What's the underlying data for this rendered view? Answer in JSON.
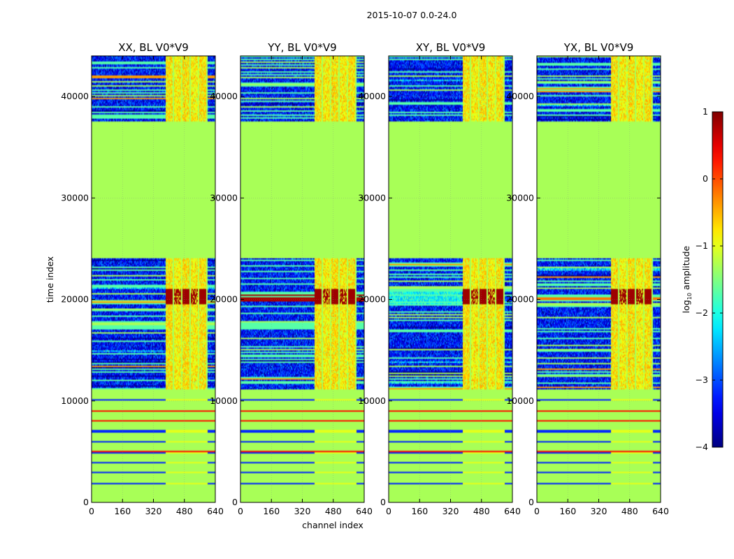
{
  "figure": {
    "suptitle": "2015-10-07 0.0-24.0"
  },
  "chart_data": {
    "type": "heatmap",
    "panels": [
      {
        "title": "XX, BL V0*V9",
        "pol": "XX"
      },
      {
        "title": "YY, BL V0*V9",
        "pol": "YY"
      },
      {
        "title": "XY, BL V0*V9",
        "pol": "XY"
      },
      {
        "title": "YX, BL V0*V9",
        "pol": "YX"
      }
    ],
    "xlabel": "channel index",
    "ylabel": "time index",
    "xlim": [
      0,
      640
    ],
    "ylim": [
      0,
      44000
    ],
    "xticks": [
      0,
      160,
      320,
      480,
      640
    ],
    "yticks": [
      0,
      10000,
      20000,
      30000,
      40000
    ],
    "colorbar": {
      "label_prefix": "log",
      "label_sub": "10",
      "label_suffix": " amplitude",
      "range": [
        -4,
        1
      ],
      "ticks": [
        1,
        0,
        -1,
        -2,
        -3,
        -4
      ],
      "tick_labels": [
        "1",
        "0",
        "−1",
        "−2",
        "−3",
        "−4"
      ],
      "colormap": "jet"
    },
    "value_regions": [
      {
        "t": [
          0,
          11200
        ],
        "channels": "all",
        "value": -1.3,
        "note": "flagged fill with sparse horizontal lines"
      },
      {
        "t": [
          11200,
          24000
        ],
        "channels": "all",
        "value": -3.2,
        "note": "noisy data band"
      },
      {
        "t": [
          19500,
          21000
        ],
        "channels": [
          390,
          600
        ],
        "value": 0.7,
        "note": "bright block"
      },
      {
        "t": [
          24000,
          37500
        ],
        "channels": "all",
        "value": -1.3,
        "note": "flagged fill"
      },
      {
        "t": [
          37500,
          44000
        ],
        "channels": "all",
        "value": -2.8,
        "note": "noisy data band"
      }
    ]
  }
}
